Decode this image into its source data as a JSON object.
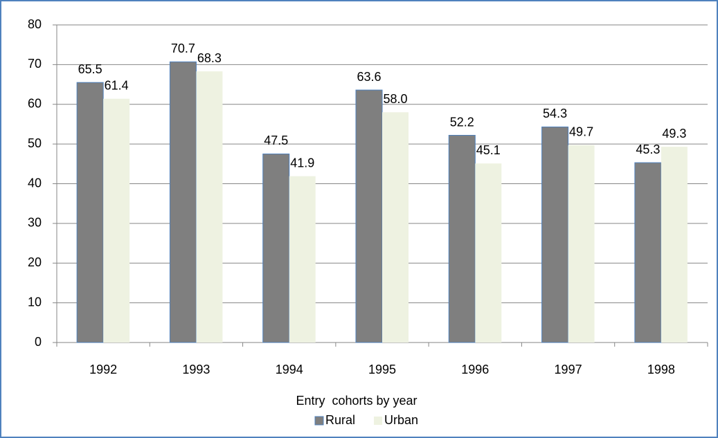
{
  "chart_data": {
    "type": "bar",
    "categories": [
      "1992",
      "1993",
      "1994",
      "1995",
      "1996",
      "1997",
      "1998"
    ],
    "series": [
      {
        "name": "Rural",
        "color": "#7f7f7f",
        "values": [
          65.5,
          70.7,
          47.5,
          63.6,
          52.2,
          54.3,
          45.3
        ],
        "value_labels": [
          "65.5",
          "70.7",
          "47.5",
          "63.6",
          "52.2",
          "54.3",
          "45.3"
        ]
      },
      {
        "name": "Urban",
        "color": "#eef2e1",
        "values": [
          61.4,
          68.3,
          41.9,
          58.0,
          45.1,
          49.7,
          49.3
        ],
        "value_labels": [
          "61.4",
          "68.3",
          "41.9",
          "58.0",
          "45.1",
          "49.7",
          "49.3"
        ]
      }
    ],
    "x_label": "Entry  cohorts by year",
    "ylim": [
      0,
      80
    ],
    "yticks": [
      0,
      10,
      20,
      30,
      40,
      50,
      60,
      70,
      80
    ],
    "grid": true,
    "legend": "bottom"
  }
}
